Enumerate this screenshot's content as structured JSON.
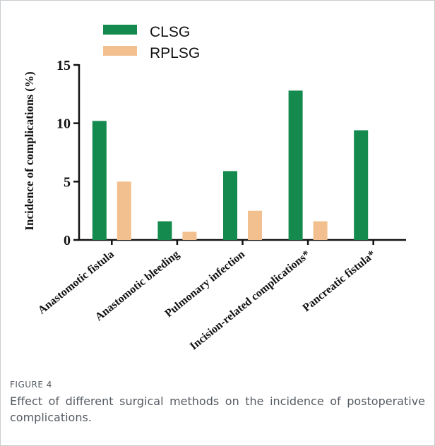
{
  "chart_data": {
    "type": "bar",
    "ylabel": "Incidence of complications (%)",
    "ylim": [
      0,
      15
    ],
    "yticks": [
      0,
      5,
      10,
      15
    ],
    "grid": false,
    "legend_position": "top-left",
    "categories": [
      "Anastomotic fistula",
      "Anastomotic bleeding",
      "Pulmonary infection",
      "Incision-related complications*",
      "Pancreatic fistula*"
    ],
    "series": [
      {
        "name": "CLSG",
        "color": "#148a4e",
        "values": [
          10.2,
          1.6,
          5.9,
          12.8,
          9.4
        ]
      },
      {
        "name": "RPLSG",
        "color": "#f2c08f",
        "values": [
          5.0,
          0.7,
          2.5,
          1.6,
          0
        ]
      }
    ]
  },
  "caption": {
    "label": "FIGURE 4",
    "text": "Effect of different surgical methods on the incidence of postoperative complications."
  }
}
